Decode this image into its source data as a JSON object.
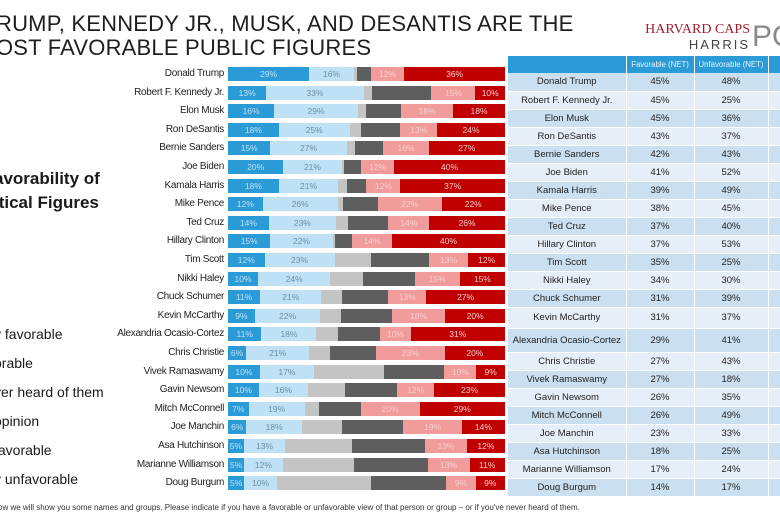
{
  "header": {
    "title_line1": "RUMP, KENNEDY JR., MUSK, AND DESANTIS ARE THE",
    "title_line2": "OST FAVORABLE PUBLIC FIGURES",
    "logo_line1": "HARVARD CAPS",
    "logo_line2": "HARRIS",
    "logo_poll": "PO"
  },
  "subtitle": {
    "line1": "avorability of",
    "line2": "itical Figures"
  },
  "legend": {
    "items": [
      {
        "label": "y favorable",
        "color": "#2b9bd8"
      },
      {
        "label": "orable",
        "color": "#bfe1f5"
      },
      {
        "label": "ver heard of them",
        "color": "#c4c4c4"
      },
      {
        "label": "opinion",
        "color": "#5e5e5e"
      },
      {
        "label": "favorable",
        "color": "#f19b9b"
      },
      {
        "label": "y unfavorable",
        "color": "#c00000"
      }
    ]
  },
  "footnote": "ow we will show you some names and groups. Please indicate if you have a favorable or unfavorable view of that person or group – or if you've never heard of them.",
  "table": {
    "headers": [
      "",
      "Favorable (NET)",
      "Unfavorable (NET)",
      ""
    ],
    "rows": [
      {
        "name": "Donald Trump",
        "fav": "45%",
        "unfav": "48%"
      },
      {
        "name": "Robert F. Kennedy Jr.",
        "fav": "45%",
        "unfav": "25%"
      },
      {
        "name": "Elon Musk",
        "fav": "45%",
        "unfav": "36%"
      },
      {
        "name": "Ron DeSantis",
        "fav": "43%",
        "unfav": "37%"
      },
      {
        "name": "Bernie Sanders",
        "fav": "42%",
        "unfav": "43%"
      },
      {
        "name": "Joe Biden",
        "fav": "41%",
        "unfav": "52%"
      },
      {
        "name": "Kamala Harris",
        "fav": "39%",
        "unfav": "49%"
      },
      {
        "name": "Mike Pence",
        "fav": "38%",
        "unfav": "45%"
      },
      {
        "name": "Ted Cruz",
        "fav": "37%",
        "unfav": "40%"
      },
      {
        "name": "Hillary Clinton",
        "fav": "37%",
        "unfav": "53%"
      },
      {
        "name": "Tim Scott",
        "fav": "35%",
        "unfav": "25%"
      },
      {
        "name": "Nikki Haley",
        "fav": "34%",
        "unfav": "30%"
      },
      {
        "name": "Chuck Schumer",
        "fav": "31%",
        "unfav": "39%"
      },
      {
        "name": "Kevin McCarthy",
        "fav": "31%",
        "unfav": "37%"
      },
      {
        "name": "Alexandria Ocasio-Cortez",
        "fav": "29%",
        "unfav": "41%"
      },
      {
        "name": "Chris Christie",
        "fav": "27%",
        "unfav": "43%"
      },
      {
        "name": "Vivek Ramaswamy",
        "fav": "27%",
        "unfav": "18%"
      },
      {
        "name": "Gavin Newsom",
        "fav": "26%",
        "unfav": "35%"
      },
      {
        "name": "Mitch McConnell",
        "fav": "26%",
        "unfav": "49%"
      },
      {
        "name": "Joe Manchin",
        "fav": "23%",
        "unfav": "33%"
      },
      {
        "name": "Asa Hutchinson",
        "fav": "18%",
        "unfav": "25%"
      },
      {
        "name": "Marianne Williamson",
        "fav": "17%",
        "unfav": "24%"
      },
      {
        "name": "Doug Burgum",
        "fav": "14%",
        "unfav": "17%"
      }
    ]
  },
  "chart_data": {
    "type": "bar",
    "orientation": "horizontal",
    "stacked": true,
    "title": "Favorability of Political Figures",
    "categories": [
      "Donald Trump",
      "Robert F. Kennedy Jr.",
      "Elon Musk",
      "Ron DeSantis",
      "Bernie Sanders",
      "Joe Biden",
      "Kamala Harris",
      "Mike Pence",
      "Ted Cruz",
      "Hillary Clinton",
      "Tim Scott",
      "Nikki Haley",
      "Chuck Schumer",
      "Kevin McCarthy",
      "Alexandria Ocasio-Cortez",
      "Chris Christie",
      "Vivek Ramaswamy",
      "Gavin Newsom",
      "Mitch McConnell",
      "Joe Manchin",
      "Asa Hutchinson",
      "Marianne Williamson",
      "Doug Burgum"
    ],
    "series": [
      {
        "name": "Very favorable",
        "color": "#2b9bd8",
        "text_color": "#bfe1f5",
        "values": [
          29,
          13,
          16,
          18,
          15,
          20,
          18,
          12,
          14,
          15,
          12,
          10,
          11,
          9,
          11,
          6,
          10,
          10,
          7,
          6,
          5,
          5,
          5
        ],
        "show_labels": [
          true,
          true,
          true,
          true,
          true,
          true,
          true,
          true,
          true,
          true,
          true,
          true,
          true,
          true,
          true,
          true,
          true,
          true,
          true,
          true,
          true,
          true,
          true
        ]
      },
      {
        "name": "Favorable",
        "color": "#bfe1f5",
        "text_color": "#6b8fa8",
        "values": [
          16,
          33,
          29,
          25,
          27,
          21,
          21,
          26,
          23,
          22,
          23,
          24,
          21,
          22,
          18,
          21,
          17,
          16,
          19,
          18,
          13,
          12,
          10
        ],
        "show_labels": [
          true,
          true,
          true,
          true,
          true,
          true,
          true,
          true,
          true,
          true,
          true,
          true,
          true,
          true,
          true,
          true,
          true,
          true,
          true,
          true,
          true,
          true,
          true
        ]
      },
      {
        "name": "Never heard of them",
        "color": "#c4c4c4",
        "text_color": "#c4c4c4",
        "values": [
          1,
          3,
          3,
          4,
          3,
          1,
          3,
          2,
          4,
          1,
          12,
          11,
          7,
          7,
          7,
          7,
          22,
          12,
          5,
          13,
          21,
          22,
          29
        ],
        "show_labels": [
          false,
          false,
          false,
          false,
          false,
          false,
          false,
          false,
          false,
          false,
          false,
          false,
          false,
          false,
          false,
          false,
          false,
          false,
          false,
          false,
          false,
          false,
          false
        ]
      },
      {
        "name": "No opinion",
        "color": "#5e5e5e",
        "text_color": "#5e5e5e",
        "values": [
          5,
          20,
          12,
          14,
          10,
          6,
          7,
          12,
          14,
          6,
          19,
          17,
          16,
          17,
          14,
          15,
          19,
          17,
          14,
          20,
          23,
          23,
          23
        ],
        "show_labels": [
          false,
          false,
          false,
          false,
          false,
          false,
          false,
          false,
          false,
          false,
          false,
          false,
          false,
          false,
          false,
          false,
          false,
          false,
          false,
          false,
          false,
          false,
          false
        ]
      },
      {
        "name": "Unfavorable",
        "color": "#f19b9b",
        "text_color": "#f8d0d0",
        "values": [
          12,
          15,
          18,
          13,
          16,
          12,
          12,
          22,
          14,
          14,
          13,
          15,
          13,
          18,
          10,
          23,
          10,
          12,
          20,
          19,
          13,
          13,
          9
        ],
        "show_labels": [
          true,
          true,
          true,
          true,
          true,
          true,
          true,
          true,
          true,
          true,
          true,
          true,
          true,
          true,
          true,
          true,
          true,
          true,
          true,
          true,
          true,
          true,
          true
        ]
      },
      {
        "name": "Very unfavorable",
        "color": "#c00000",
        "text_color": "#f5c9c9",
        "values": [
          36,
          10,
          18,
          24,
          27,
          40,
          37,
          22,
          26,
          40,
          12,
          15,
          27,
          20,
          31,
          20,
          9,
          23,
          29,
          14,
          12,
          11,
          9
        ],
        "show_labels": [
          true,
          true,
          true,
          true,
          true,
          true,
          true,
          true,
          true,
          true,
          true,
          true,
          true,
          true,
          true,
          true,
          true,
          true,
          true,
          true,
          true,
          true,
          true
        ]
      }
    ],
    "xlim": [
      0,
      100
    ],
    "legend": "left"
  }
}
